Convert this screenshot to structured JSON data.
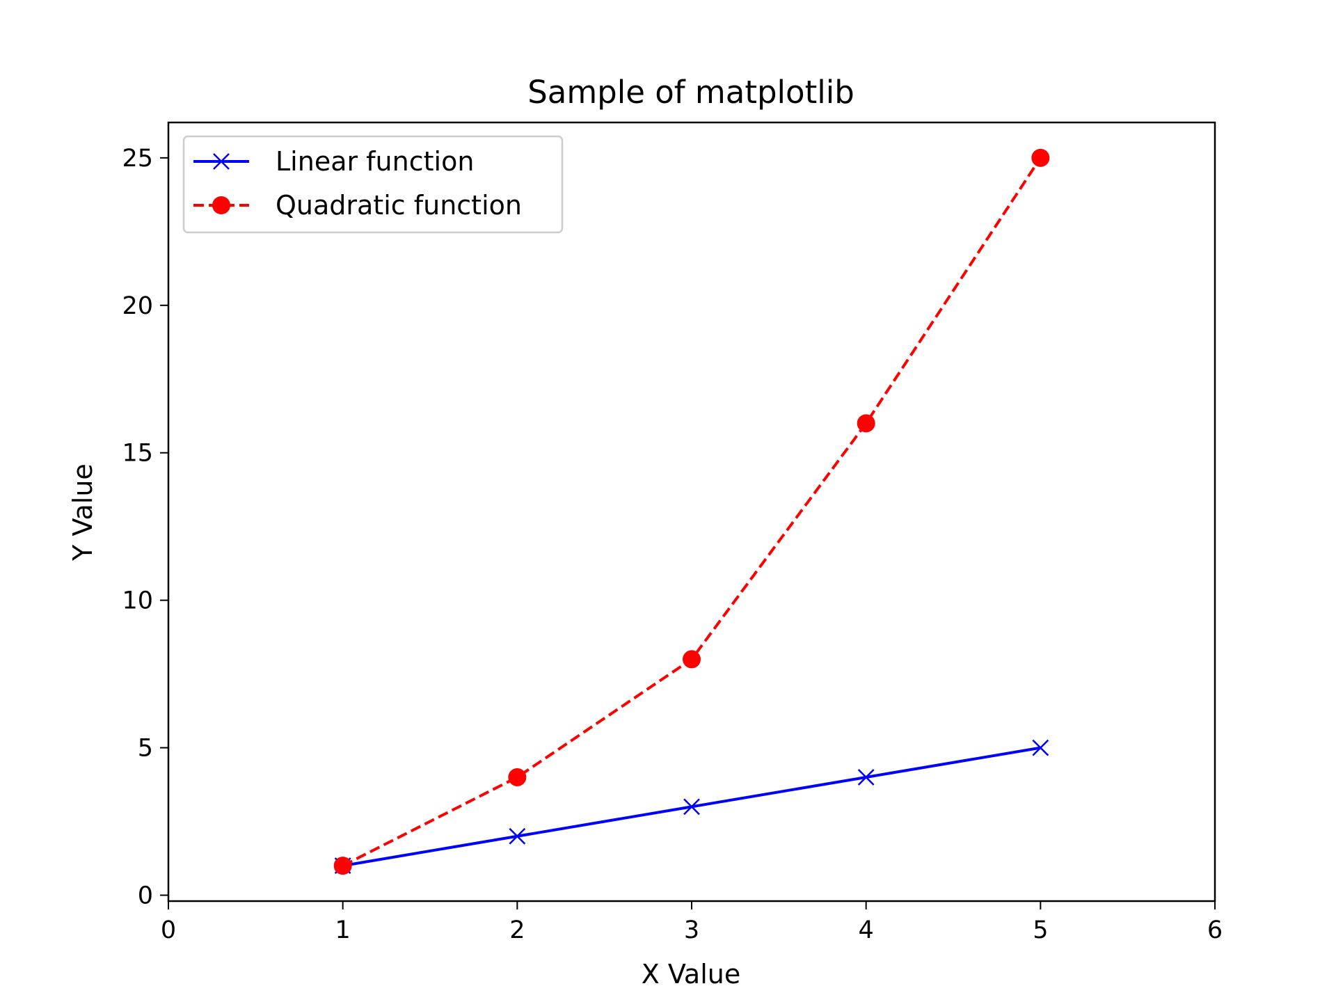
{
  "chart_data": {
    "type": "line",
    "title": "Sample of matplotlib",
    "xlabel": "X Value",
    "ylabel": "Y Value",
    "xlim": [
      0,
      6
    ],
    "ylim": [
      -0.2,
      26.2
    ],
    "xticks": [
      0,
      1,
      2,
      3,
      4,
      5,
      6
    ],
    "yticks": [
      0,
      5,
      10,
      15,
      20,
      25
    ],
    "grid": false,
    "legend_position": "top-left",
    "series": [
      {
        "name": "Linear function",
        "x": [
          1,
          2,
          3,
          4,
          5
        ],
        "y": [
          1,
          2,
          3,
          4,
          5
        ],
        "color": "#0000ff",
        "line_style": "solid",
        "marker": "x"
      },
      {
        "name": "Quadratic function",
        "x": [
          1,
          2,
          3,
          4,
          5
        ],
        "y": [
          1,
          4,
          8,
          16,
          25
        ],
        "color": "#ff0000",
        "line_style": "dashed",
        "marker": "circle"
      }
    ]
  }
}
